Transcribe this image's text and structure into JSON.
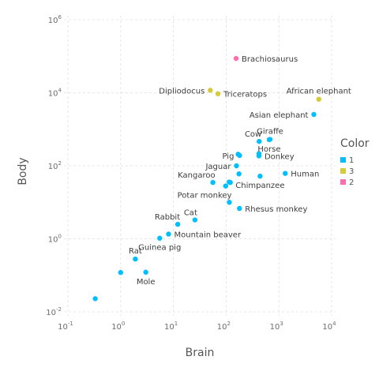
{
  "chart_data": {
    "type": "scatter",
    "xlabel": "Brain",
    "ylabel": "Body",
    "xscale": "log10",
    "yscale": "log10",
    "xlim": [
      0.1,
      10000
    ],
    "ylim": [
      0.01,
      1000000
    ],
    "x_ticks": [
      0.1,
      1,
      10,
      100,
      1000,
      10000
    ],
    "y_ticks": [
      0.01,
      1,
      100,
      10000,
      1000000
    ],
    "x_tick_labels": [
      {
        "base": "10",
        "exp": "-1"
      },
      {
        "base": "10",
        "exp": "0"
      },
      {
        "base": "10",
        "exp": "1"
      },
      {
        "base": "10",
        "exp": "2"
      },
      {
        "base": "10",
        "exp": "3"
      },
      {
        "base": "10",
        "exp": "4"
      }
    ],
    "y_tick_labels": [
      {
        "base": "10",
        "exp": "-2"
      },
      {
        "base": "10",
        "exp": "0"
      },
      {
        "base": "10",
        "exp": "2"
      },
      {
        "base": "10",
        "exp": "4"
      },
      {
        "base": "10",
        "exp": "6"
      }
    ],
    "grid": true,
    "legend": {
      "title": "Color",
      "placement": "right",
      "entries": [
        {
          "label": "1",
          "color": "#00BFFF"
        },
        {
          "label": "3",
          "color": "#D4CA3A"
        },
        {
          "label": "2",
          "color": "#FF6DAE"
        }
      ]
    },
    "points": [
      {
        "label": "Brachiosaurus",
        "brain": 154.5,
        "body": 87000,
        "color_group": "2",
        "label_pos": "right"
      },
      {
        "label": "Dipliodocus",
        "brain": 50,
        "body": 11700,
        "color_group": "3",
        "label_pos": "left"
      },
      {
        "label": "Triceratops",
        "brain": 70,
        "body": 9400,
        "color_group": "3",
        "label_pos": "right"
      },
      {
        "label": "African elephant",
        "brain": 5712,
        "body": 6654,
        "color_group": "3",
        "label_pos": "above"
      },
      {
        "label": "Asian elephant",
        "brain": 4603,
        "body": 2547,
        "color_group": "1",
        "label_pos": "left"
      },
      {
        "label": "Giraffe",
        "brain": 680,
        "body": 529,
        "color_group": "1",
        "label_pos": "above"
      },
      {
        "label": "Cow",
        "brain": 423,
        "body": 465,
        "color_group": "1",
        "label_pos": "above-left"
      },
      {
        "label": "Horse",
        "brain": 655,
        "body": 521,
        "color_group": "1",
        "label_pos": "below"
      },
      {
        "label": "Donkey",
        "brain": 419,
        "body": 187,
        "color_group": "1",
        "label_pos": "right"
      },
      {
        "label": "Pig",
        "brain": 180,
        "body": 192,
        "color_group": "1",
        "label_pos": "left"
      },
      {
        "label": "Jaguar",
        "brain": 157,
        "body": 100,
        "color_group": "1",
        "label_pos": "left"
      },
      {
        "label": "Kangaroo",
        "brain": 56,
        "body": 35,
        "color_group": "1",
        "label_pos": "above-left"
      },
      {
        "label": "Human",
        "brain": 1320,
        "body": 62,
        "color_group": "1",
        "label_pos": "right"
      },
      {
        "label": "Chimpanzee",
        "brain": 440,
        "body": 52,
        "color_group": "1",
        "label_pos": "below"
      },
      {
        "label": "Rhesus monkey",
        "brain": 179,
        "body": 6.8,
        "color_group": "1",
        "label_pos": "right"
      },
      {
        "label": "Potar monkey",
        "brain": 115,
        "body": 10,
        "color_group": "1",
        "label_pos": "above-left"
      },
      {
        "label": "Cat",
        "brain": 25.6,
        "body": 3.3,
        "color_group": "1",
        "label_pos": "above-left"
      },
      {
        "label": "Rabbit",
        "brain": 12.1,
        "body": 2.5,
        "color_group": "1",
        "label_pos": "above-left"
      },
      {
        "label": "Mountain beaver",
        "brain": 8.1,
        "body": 1.35,
        "color_group": "1",
        "label_pos": "right"
      },
      {
        "label": "Guinea pig",
        "brain": 5.5,
        "body": 1.04,
        "color_group": "1",
        "label_pos": "below"
      },
      {
        "label": "Rat",
        "brain": 1.9,
        "body": 0.28,
        "color_group": "1",
        "label_pos": "above"
      },
      {
        "label": "Mole",
        "brain": 3,
        "body": 0.122,
        "color_group": "1",
        "label_pos": "below"
      },
      {
        "label": "",
        "brain": 1,
        "body": 0.12,
        "color_group": "1",
        "label_pos": "none"
      },
      {
        "label": "",
        "brain": 0.33,
        "body": 0.023,
        "color_group": "1",
        "label_pos": "none"
      },
      {
        "label": "",
        "brain": 114,
        "body": 36,
        "color_group": "1",
        "label_pos": "none"
      },
      {
        "label": "",
        "brain": 175,
        "body": 60,
        "color_group": "1",
        "label_pos": "none"
      },
      {
        "label": "",
        "brain": 98,
        "body": 28,
        "color_group": "1",
        "label_pos": "none"
      },
      {
        "label": "",
        "brain": 120,
        "body": 35,
        "color_group": "1",
        "label_pos": "none"
      },
      {
        "label": "",
        "brain": 169,
        "body": 207,
        "color_group": "1",
        "label_pos": "none"
      },
      {
        "label": "",
        "brain": 419,
        "body": 215,
        "color_group": "1",
        "label_pos": "none"
      }
    ]
  }
}
